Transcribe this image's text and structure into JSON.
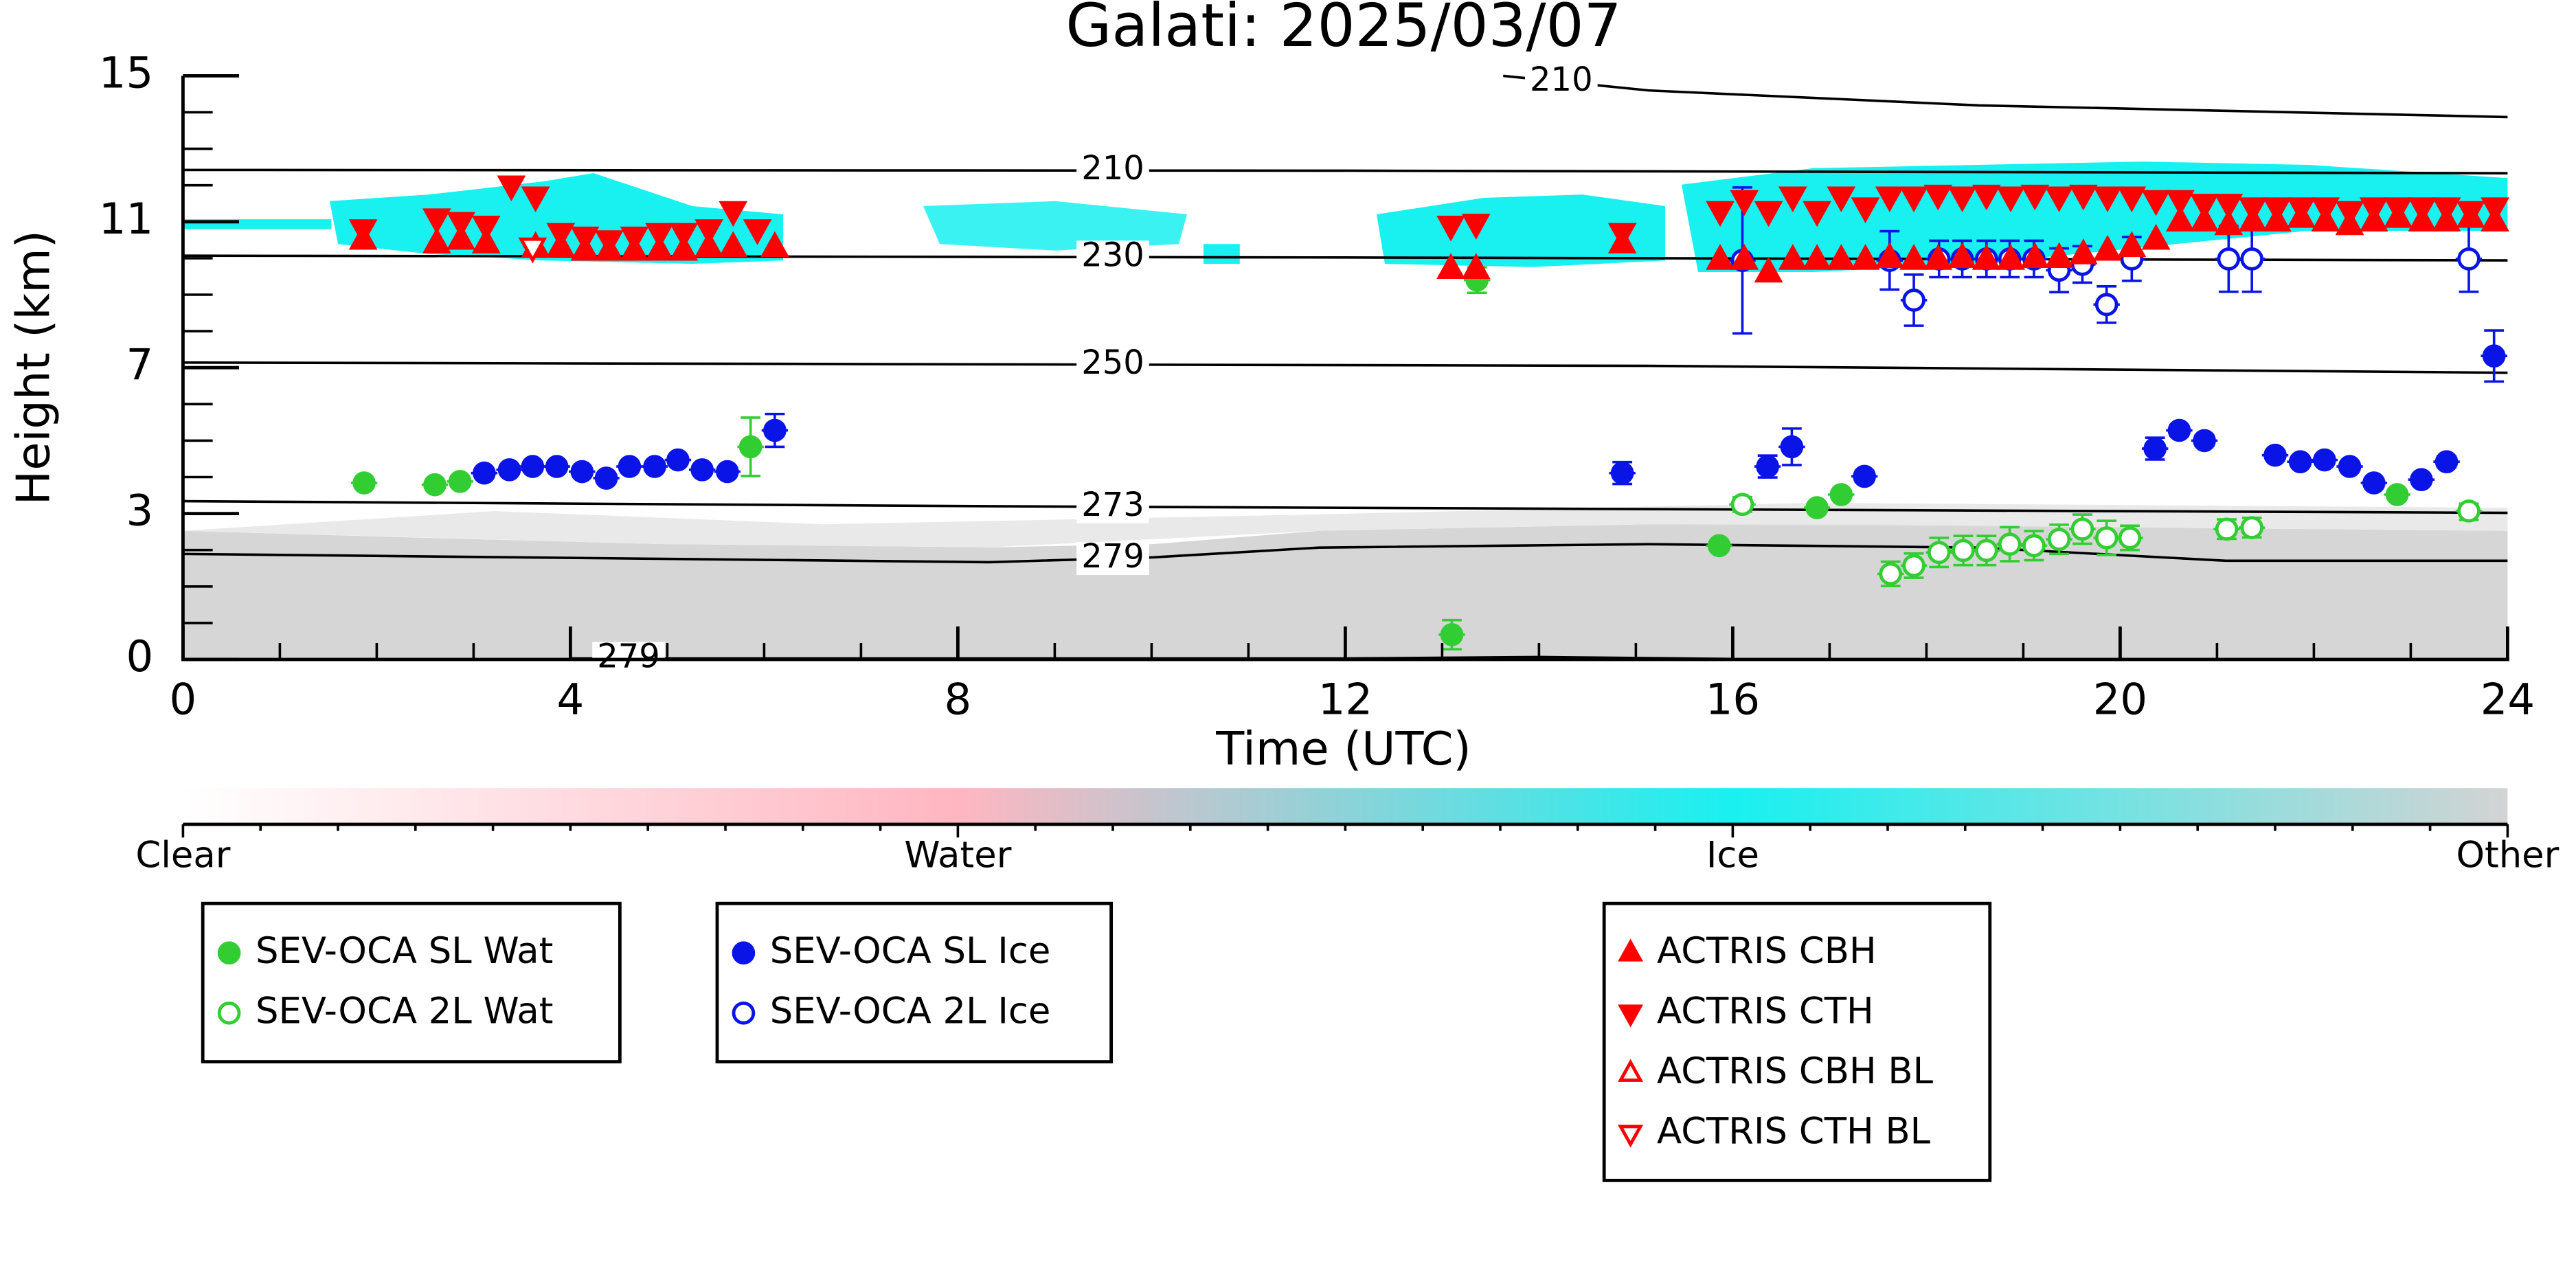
{
  "chart_data": {
    "type": "scatter",
    "title": "Galati: 2025/03/07",
    "x_label": "Time (UTC)",
    "y_label": "Height (km)",
    "xlim": [
      0,
      24
    ],
    "xticks": [
      0,
      4,
      8,
      12,
      16,
      20,
      24
    ],
    "ylim": [
      0,
      15
    ],
    "yticks": [
      0,
      3,
      7,
      11,
      15
    ],
    "series": [
      {
        "name": "SEV-OCA SL Wat",
        "color": "#32cd32",
        "marker": "circle",
        "filled": true,
        "x": [
          1.87,
          2.6,
          2.86,
          5.86,
          13.36,
          13.1,
          15.86,
          16.87,
          17.12,
          22.86
        ],
        "values": [
          3.84,
          3.79,
          3.88,
          4.83,
          9.4,
          0.51,
          2.34,
          3.16,
          3.52,
          3.52
        ],
        "errors": [
          0.1,
          0.1,
          0.1,
          0.8,
          0.35,
          0.3,
          0.1,
          0.1,
          0.1,
          0.1
        ]
      },
      {
        "name": "SEV-OCA 2L Wat",
        "color": "#32cd32",
        "marker": "circle",
        "filled": false,
        "x": [
          16.1,
          17.63,
          17.87,
          18.13,
          18.38,
          18.62,
          18.86,
          19.11,
          19.37,
          19.61,
          19.86,
          20.1,
          21.1,
          21.36,
          23.6
        ],
        "values": [
          3.25,
          1.76,
          1.93,
          2.2,
          2.24,
          2.24,
          2.37,
          2.34,
          2.47,
          2.68,
          2.5,
          2.5,
          2.68,
          2.71,
          3.07
        ],
        "errors": [
          0.2,
          0.25,
          0.25,
          0.3,
          0.3,
          0.3,
          0.35,
          0.3,
          0.3,
          0.3,
          0.35,
          0.25,
          0.2,
          0.2,
          0.2
        ]
      },
      {
        "name": "SEV-OCA SL Ice",
        "color": "#0a14e6",
        "marker": "circle",
        "filled": true,
        "x": [
          3.11,
          3.37,
          3.61,
          3.86,
          4.12,
          4.37,
          4.61,
          4.87,
          5.11,
          5.36,
          5.62,
          6.11,
          14.86,
          16.36,
          16.61,
          17.36,
          20.36,
          20.61,
          20.87,
          21.6,
          21.86,
          22.11,
          22.37,
          22.62,
          23.11,
          23.37,
          23.86
        ],
        "values": [
          4.11,
          4.2,
          4.29,
          4.29,
          4.15,
          3.97,
          4.29,
          4.29,
          4.47,
          4.2,
          4.15,
          5.28,
          4.11,
          4.29,
          4.83,
          4.02,
          4.78,
          5.28,
          5.0,
          4.6,
          4.42,
          4.47,
          4.29,
          3.84,
          3.93,
          4.42,
          7.32
        ],
        "errors": [
          0.1,
          0.1,
          0.1,
          0.1,
          0.1,
          0.1,
          0.1,
          0.1,
          0.1,
          0.1,
          0.1,
          0.45,
          0.3,
          0.3,
          0.5,
          0.15,
          0.3,
          0.15,
          0.15,
          0.1,
          0.1,
          0.1,
          0.1,
          0.1,
          0.1,
          0.15,
          0.7
        ]
      },
      {
        "name": "SEV-OCA 2L Ice",
        "color": "#0a14e6",
        "marker": "circle",
        "filled": false,
        "x": [
          16.1,
          17.62,
          17.87,
          18.13,
          18.37,
          18.62,
          18.86,
          19.11,
          19.37,
          19.61,
          19.86,
          20.12,
          21.12,
          21.36,
          23.6
        ],
        "values": [
          9.94,
          9.94,
          8.85,
          9.98,
          9.98,
          9.98,
          9.98,
          9.98,
          9.67,
          9.83,
          8.73,
          9.98,
          9.98,
          9.98,
          9.98
        ],
        "errors": [
          2.0,
          0.8,
          0.7,
          0.5,
          0.5,
          0.5,
          0.5,
          0.5,
          0.6,
          0.5,
          0.5,
          0.6,
          0.9,
          0.9,
          0.9
        ]
      },
      {
        "name": "ACTRIS CBH",
        "color": "#ff0000",
        "marker": "triangle-up",
        "filled": true,
        "x": [
          1.86,
          2.62,
          2.87,
          3.13,
          3.64,
          3.9,
          4.15,
          4.4,
          4.66,
          4.92,
          5.17,
          5.43,
          5.68,
          6.11,
          13.09,
          13.35,
          14.86,
          15.87,
          16.12,
          16.37,
          16.62,
          16.87,
          17.12,
          17.37,
          17.62,
          17.87,
          18.12,
          18.37,
          18.62,
          18.87,
          19.12,
          19.37,
          19.62,
          19.87,
          20.12,
          20.37,
          20.62,
          20.87,
          21.12,
          21.37,
          21.62,
          21.87,
          22.12,
          22.37,
          22.62,
          22.87,
          23.12,
          23.37,
          23.62,
          23.87
        ],
        "values": [
          10.5,
          10.4,
          10.5,
          10.4,
          10.3,
          10.3,
          10.2,
          10.2,
          10.2,
          10.2,
          10.2,
          10.3,
          10.3,
          10.3,
          9.7,
          9.7,
          10.4,
          9.95,
          9.95,
          9.6,
          9.95,
          9.95,
          9.95,
          9.95,
          10.0,
          9.95,
          9.95,
          10.0,
          9.95,
          9.95,
          10.0,
          10.0,
          10.1,
          10.2,
          10.3,
          10.5,
          11.0,
          11.0,
          10.9,
          11.0,
          11.0,
          11.1,
          11.0,
          10.9,
          11.0,
          11.1,
          11.0,
          11.0,
          11.1,
          11.0
        ]
      },
      {
        "name": "ACTRIS CTH",
        "color": "#ff0000",
        "marker": "triangle-down",
        "filled": true,
        "x": [
          1.86,
          2.62,
          2.87,
          3.13,
          3.39,
          3.64,
          3.9,
          4.15,
          4.4,
          4.66,
          4.92,
          5.17,
          5.43,
          5.68,
          5.93,
          13.09,
          13.35,
          14.86,
          15.87,
          16.12,
          16.37,
          16.62,
          16.87,
          17.12,
          17.37,
          17.62,
          17.87,
          18.12,
          18.37,
          18.62,
          18.87,
          19.12,
          19.37,
          19.62,
          19.87,
          20.12,
          20.37,
          20.62,
          20.87,
          21.12,
          21.37,
          21.62,
          21.87,
          22.12,
          22.37,
          22.62,
          22.87,
          23.12,
          23.37,
          23.62,
          23.87
        ],
        "values": [
          10.8,
          11.1,
          11.0,
          10.9,
          12.0,
          11.7,
          10.7,
          10.6,
          10.5,
          10.6,
          10.7,
          10.7,
          10.8,
          11.3,
          10.8,
          10.9,
          10.95,
          10.7,
          11.3,
          11.6,
          11.3,
          11.7,
          11.3,
          11.7,
          11.4,
          11.7,
          11.7,
          11.75,
          11.7,
          11.75,
          11.7,
          11.75,
          11.7,
          11.75,
          11.7,
          11.7,
          11.6,
          11.6,
          11.5,
          11.5,
          11.4,
          11.4,
          11.4,
          11.4,
          11.3,
          11.4,
          11.4,
          11.4,
          11.4,
          11.3,
          11.4
        ]
      },
      {
        "name": "ACTRIS CBH BL",
        "color": "#ff0000",
        "marker": "triangle-up",
        "filled": false,
        "x": [],
        "values": []
      },
      {
        "name": "ACTRIS CTH BL",
        "color": "#ff0000",
        "marker": "triangle-down",
        "filled": false,
        "x": [
          3.61
        ],
        "values": [
          10.3
        ]
      }
    ],
    "contours": [
      {
        "label": "210",
        "x": [
          13.63,
          15.13,
          18.54,
          24
        ],
        "y": [
          15.0,
          14.6,
          14.19,
          13.87
        ]
      },
      {
        "label": "210",
        "x": [
          0,
          12,
          24
        ],
        "y": [
          12.42,
          12.4,
          12.33
        ]
      },
      {
        "label": "230",
        "x": [
          0,
          12,
          24
        ],
        "y": [
          10.07,
          10.02,
          9.94
        ]
      },
      {
        "label": "250",
        "x": [
          0,
          15.13,
          24
        ],
        "y": [
          7.14,
          7.05,
          6.86
        ]
      },
      {
        "label": "273",
        "x": [
          0,
          8.32,
          24
        ],
        "y": [
          3.34,
          3.2,
          3.02
        ]
      },
      {
        "label": "279",
        "x": [
          0,
          8.32,
          10.02,
          11.73,
          15.13,
          18.54,
          21.09,
          24
        ],
        "y": [
          2.17,
          2.0,
          2.1,
          2.3,
          2.37,
          2.3,
          2.03,
          2.03
        ]
      },
      {
        "label": "279",
        "x": [
          4.0,
          12.0,
          14.0,
          16.0
        ],
        "y": [
          0.02,
          0.02,
          0.05,
          0.01
        ]
      }
    ],
    "colorbar": {
      "labels": [
        "Clear",
        "Water",
        "Ice",
        "Other"
      ],
      "colors": [
        "#ffffff",
        "#ffb6c1",
        "#19f0f0",
        "#d3d3d3"
      ]
    }
  }
}
